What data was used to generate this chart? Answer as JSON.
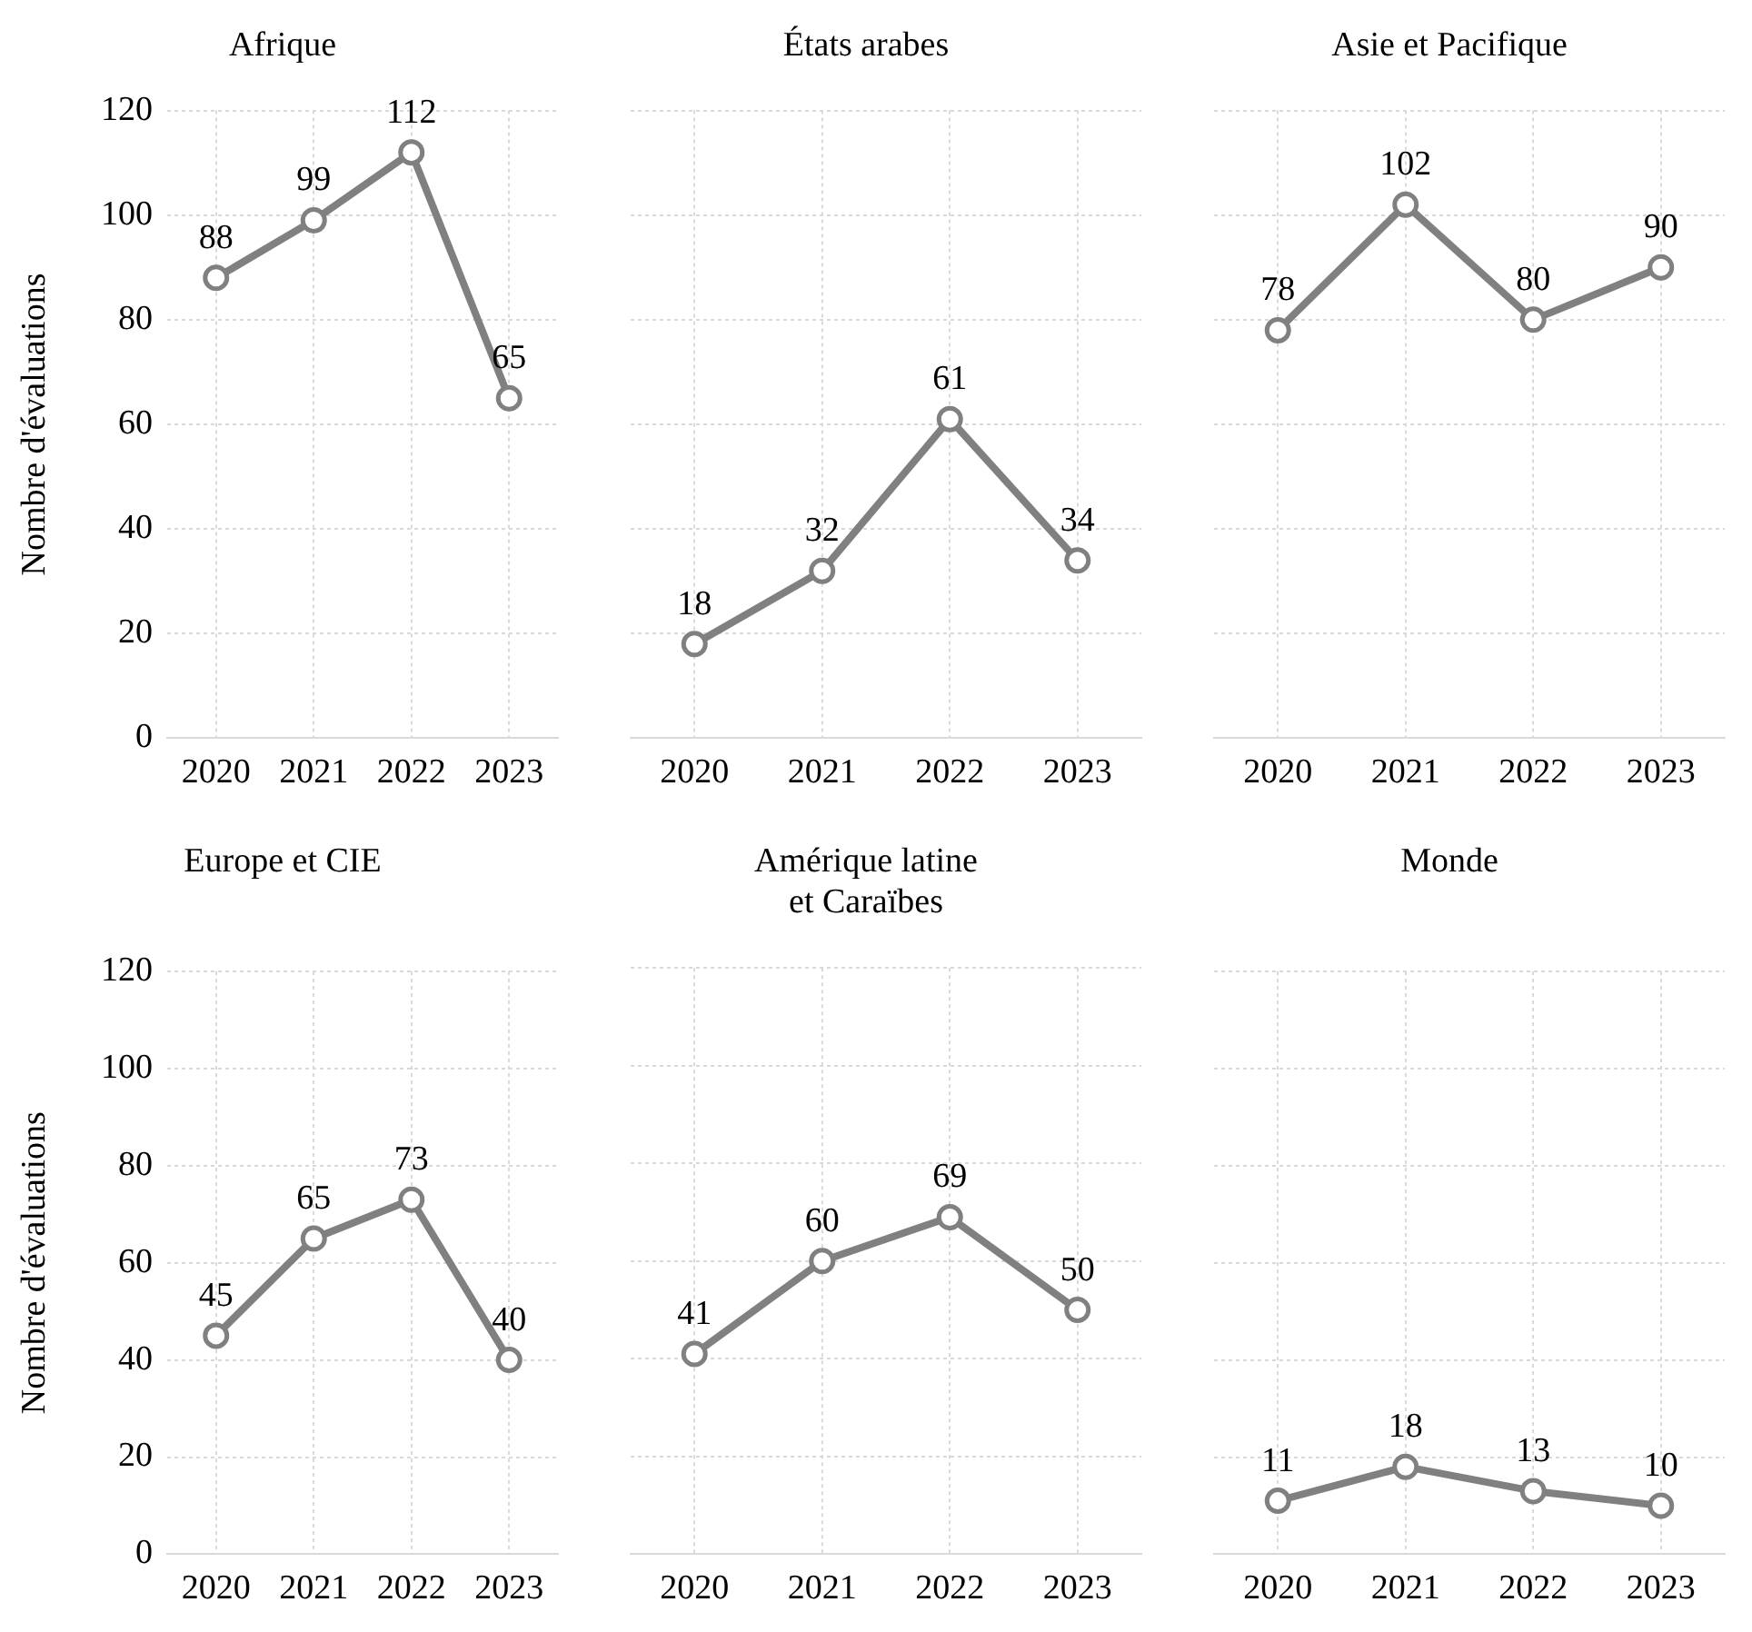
{
  "chart_data": [
    {
      "type": "line",
      "title": "Afrique",
      "ylabel": "Nombre d'évaluations",
      "categories": [
        "2020",
        "2021",
        "2022",
        "2023"
      ],
      "values": [
        88,
        99,
        112,
        65
      ],
      "color": "#808080",
      "ylim": [
        0,
        120
      ],
      "yticks": [
        0,
        20,
        40,
        60,
        80,
        100,
        120
      ],
      "grid": true,
      "marker": "circle",
      "data_labels": true
    },
    {
      "type": "line",
      "title": "États arabes",
      "categories": [
        "2020",
        "2021",
        "2022",
        "2023"
      ],
      "values": [
        18,
        32,
        61,
        34
      ],
      "color": "#808080",
      "ylim": [
        0,
        120
      ],
      "yticks": [
        0,
        20,
        40,
        60,
        80,
        100,
        120
      ],
      "grid": true,
      "marker": "circle",
      "data_labels": true,
      "tick_labels": "x"
    },
    {
      "type": "line",
      "title": "Asie et Pacifique",
      "categories": [
        "2020",
        "2021",
        "2022",
        "2023"
      ],
      "values": [
        78,
        102,
        80,
        90
      ],
      "color": "#808080",
      "ylim": [
        0,
        120
      ],
      "yticks": [
        0,
        20,
        40,
        60,
        80,
        100,
        120
      ],
      "grid": true,
      "marker": "circle",
      "data_labels": true,
      "tick_labels": "x"
    },
    {
      "type": "line",
      "title": "Europe et CIE",
      "ylabel": "Nombre d'évaluations",
      "categories": [
        "2020",
        "2021",
        "2022",
        "2023"
      ],
      "values": [
        45,
        65,
        73,
        40
      ],
      "color": "#808080",
      "ylim": [
        0,
        120
      ],
      "yticks": [
        0,
        20,
        40,
        60,
        80,
        100,
        120
      ],
      "grid": true,
      "marker": "circle",
      "data_labels": true
    },
    {
      "type": "line",
      "title": "Amérique latine\net Caraïbes",
      "categories": [
        "2020",
        "2021",
        "2022",
        "2023"
      ],
      "values": [
        41,
        60,
        69,
        50
      ],
      "color": "#808080",
      "ylim": [
        0,
        120
      ],
      "yticks": [
        0,
        20,
        40,
        60,
        80,
        100,
        120
      ],
      "grid": true,
      "marker": "circle",
      "data_labels": true,
      "tick_labels": "x"
    },
    {
      "type": "line",
      "title": "Monde",
      "categories": [
        "2020",
        "2021",
        "2022",
        "2023"
      ],
      "values": [
        11,
        18,
        13,
        10
      ],
      "color": "#808080",
      "ylim": [
        0,
        120
      ],
      "yticks": [
        0,
        20,
        40,
        60,
        80,
        100,
        120
      ],
      "grid": true,
      "marker": "circle",
      "data_labels": true,
      "tick_labels": "x"
    }
  ]
}
